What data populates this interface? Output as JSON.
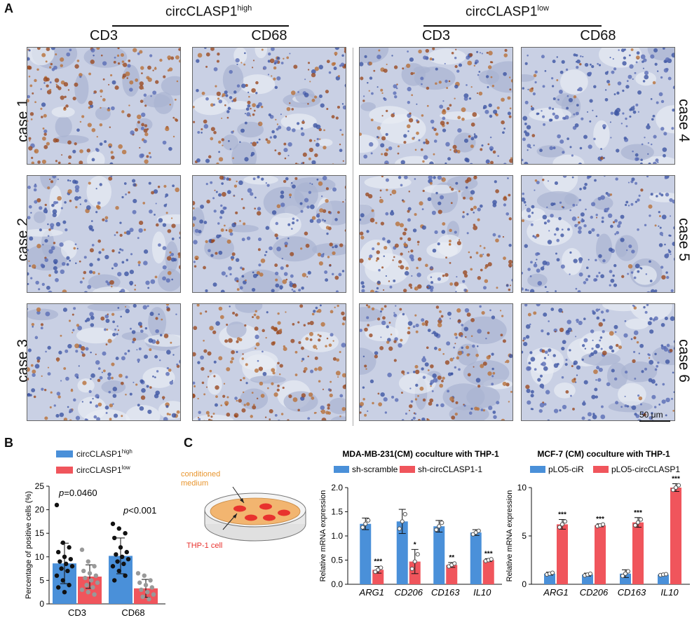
{
  "panel_labels": {
    "a": "A",
    "b": "B",
    "c": "C"
  },
  "panelA": {
    "group_high": "circCLASP1",
    "group_high_sup": "high",
    "group_low": "circCLASP1",
    "group_low_sup": "low",
    "columns": [
      "CD3",
      "CD68",
      "CD3",
      "CD68"
    ],
    "rows_left": [
      "case 1",
      "case 2",
      "case 3"
    ],
    "rows_right": [
      "case 4",
      "case 5",
      "case 6"
    ],
    "scale_bar": "50 μm",
    "colors": {
      "tissue": "#b8c2dd",
      "stain_brown": "#a0522d",
      "nuclei": "#3d55a3"
    }
  },
  "panelB": {
    "legend": [
      {
        "name": "circCLASP1",
        "sup": "high",
        "color": "#4a90d9"
      },
      {
        "name": "circCLASP1",
        "sup": "low",
        "color": "#f0555c"
      }
    ],
    "p_cd3": "p=0.0460",
    "p_cd68": "p<0.001",
    "ylabel": "Percentage of positive cells (%)"
  },
  "panelC": {
    "dish_medium": "conditioned\nmedium",
    "dish_cell": "THP-1 cell",
    "colors": {
      "medium": "#f2b570",
      "cell": "#e8322e",
      "blue": "#4a90d9",
      "red": "#f0555c"
    }
  },
  "chart_data": [
    {
      "type": "bar",
      "title": "",
      "xlabel": "",
      "ylabel": "Percentage of positive cells (%)",
      "ylim": [
        0,
        25
      ],
      "yticks": [
        0,
        5,
        10,
        15,
        20,
        25
      ],
      "categories": [
        "CD3",
        "CD68"
      ],
      "series": [
        {
          "name": "circCLASP1 high",
          "values": [
            8.6,
            10.2
          ],
          "errors": [
            4.3,
            3.8
          ],
          "points": [
            [
              21,
              13,
              12,
              11,
              10,
              9.5,
              9,
              8.5,
              8,
              7.5,
              7,
              6,
              5,
              4,
              3.5,
              2.5
            ],
            [
              17,
              16,
              15,
              14,
              12,
              11,
              10.5,
              10,
              9.5,
              9,
              8.5,
              8,
              7,
              6,
              5
            ]
          ]
        },
        {
          "name": "circCLASP1 low",
          "values": [
            5.8,
            3.3
          ],
          "errors": [
            2.5,
            1.9
          ],
          "points": [
            [
              11.5,
              9,
              8,
              7,
              6.5,
              6,
              5.5,
              5,
              4.5,
              4,
              3.5,
              3,
              2.5,
              2
            ],
            [
              6.5,
              6,
              5,
              4.5,
              4,
              3.5,
              3,
              2.5,
              2,
              1.5,
              1
            ]
          ]
        }
      ],
      "annotations": [
        "p=0.0460",
        "p<0.001"
      ]
    },
    {
      "type": "bar",
      "title": "MDA-MB-231(CM) coculture with THP-1",
      "ylabel": "Relative mRNA expression",
      "ylim": [
        0,
        2.0
      ],
      "yticks": [
        "0.0",
        "0.5",
        "1.0",
        "1.5",
        "2.0"
      ],
      "categories": [
        "ARG1",
        "CD206",
        "CD163",
        "IL10"
      ],
      "series": [
        {
          "name": "sh-scramble",
          "values": [
            1.25,
            1.3,
            1.2,
            1.07
          ],
          "errors": [
            0.12,
            0.25,
            0.12,
            0.06
          ]
        },
        {
          "name": "sh-circCLASP1-1",
          "values": [
            0.3,
            0.47,
            0.4,
            0.5
          ],
          "errors": [
            0.07,
            0.25,
            0.05,
            0.03
          ]
        }
      ],
      "significance": [
        "***",
        "*",
        "**",
        "***"
      ]
    },
    {
      "type": "bar",
      "title": "MCF-7 (CM) coculture with THP-1",
      "ylabel": "Relative mRNA expression",
      "ylim": [
        0,
        10
      ],
      "yticks": [
        "0",
        "5",
        "10"
      ],
      "categories": [
        "ARG1",
        "CD206",
        "CD163",
        "IL10"
      ],
      "series": [
        {
          "name": "pLO5-ciR",
          "values": [
            1.1,
            1.0,
            1.1,
            1.0
          ],
          "errors": [
            0.15,
            0.15,
            0.4,
            0.08
          ]
        },
        {
          "name": "pLO5-circCLASP1",
          "values": [
            6.2,
            6.1,
            6.4,
            10.0
          ],
          "errors": [
            0.5,
            0.15,
            0.5,
            0.4
          ]
        }
      ],
      "significance": [
        "***",
        "***",
        "***",
        "***"
      ]
    }
  ]
}
